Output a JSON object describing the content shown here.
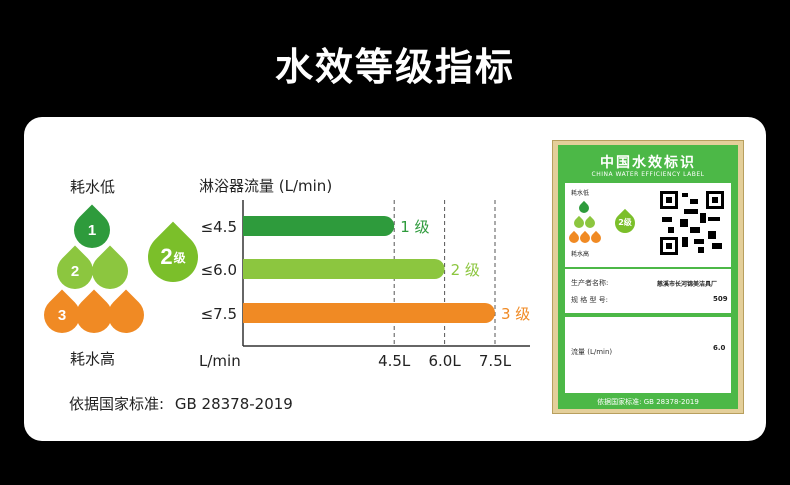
{
  "page": {
    "title": "水效等级指标"
  },
  "left": {
    "top_label": "耗水低",
    "bottom_label": "耗水高",
    "drops": [
      {
        "label": "1",
        "color": "#2e9b3c"
      },
      {
        "label": "2",
        "color": "#8cc63f"
      },
      {
        "label": "3",
        "color": "#f08a24"
      }
    ],
    "big_drop": {
      "num": "2",
      "unit": "级",
      "color": "#7bbf2a"
    }
  },
  "standard": {
    "label": "依据国家标准:",
    "value": "GB 28378-2019"
  },
  "chart_data": {
    "type": "bar",
    "orientation": "horizontal",
    "title": "淋浴器流量 (L/min)",
    "xlabel": "L/min",
    "categories": [
      "≤4.5",
      "≤6.0",
      "≤7.5"
    ],
    "values": [
      4.5,
      6.0,
      7.5
    ],
    "value_labels": [
      "1 级",
      "2 级",
      "3 级"
    ],
    "colors": [
      "#2e9b3c",
      "#8cc63f",
      "#f08a24"
    ],
    "x_ticks": [
      4.5,
      6.0,
      7.5
    ],
    "x_tick_labels": [
      "4.5L",
      "6.0L",
      "7.5L"
    ],
    "xlim": [
      0,
      7.5
    ],
    "grid": "vertical dashed"
  },
  "label": {
    "title": "中国水效标识",
    "subtitle": "CHINA WATER EFFICIENCY LABEL",
    "low": "耗水低",
    "high": "耗水高",
    "grade_badge": "2级",
    "producer_label": "生产者名称:",
    "producer_value": "慈溪市长河锦美洁具厂",
    "model_label": "规 格 型 号:",
    "model_value": "509",
    "flow_label": "流量 (L/min)",
    "flow_value": "6.0",
    "footer": "依据国家标准: GB 28378-2019"
  }
}
